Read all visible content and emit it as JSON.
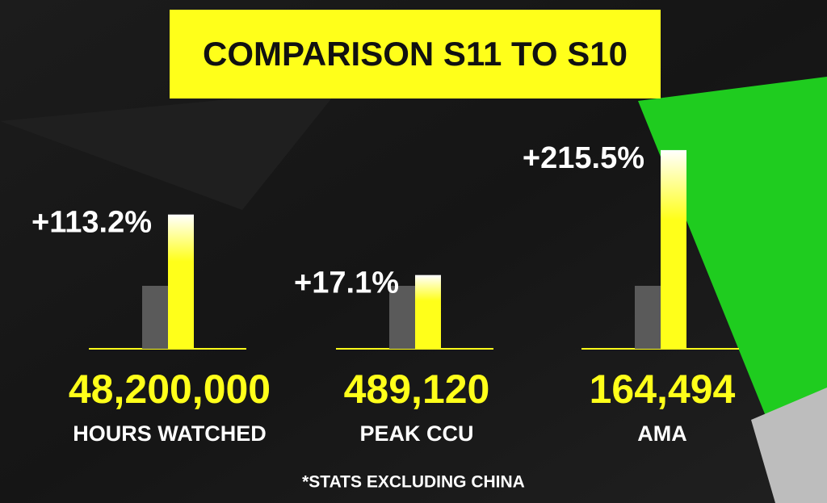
{
  "chart_data": {
    "type": "bar",
    "title": "COMPARISON S11 TO S10",
    "categories": [
      "HOURS WATCHED",
      "PEAK CCU",
      "AMA"
    ],
    "values": [
      113.2,
      17.1,
      215.5
    ],
    "value_labels": [
      "+113.2%",
      "+17.1%",
      "+215.5%"
    ],
    "stats": [
      "48,200,000",
      "489,120",
      "164,494"
    ],
    "color": "#ffff1a",
    "reference_color": "#5a5a5a",
    "note": "*STATS EXCLUDING CHINA"
  }
}
